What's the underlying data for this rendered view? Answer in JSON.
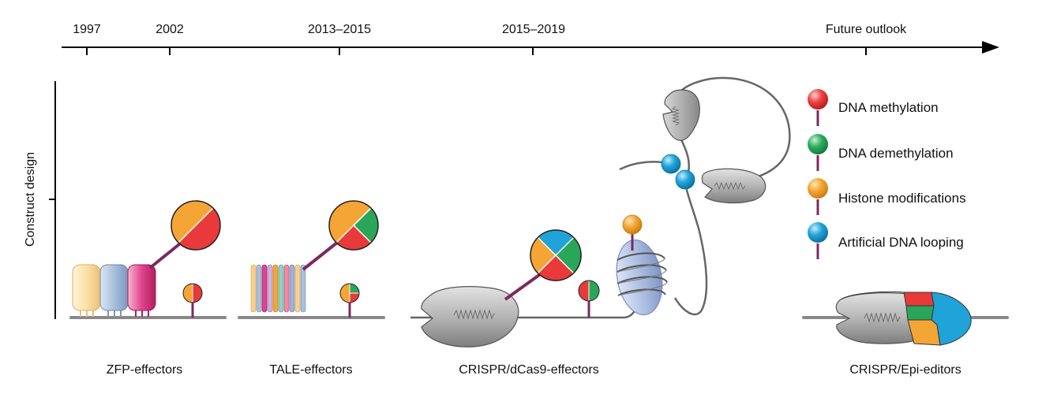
{
  "timeline": {
    "years": [
      "1997",
      "2002",
      "2013–2015",
      "2015–2019",
      "Future outlook"
    ]
  },
  "axis": {
    "ylabel": "Construct design"
  },
  "legend": {
    "items": [
      {
        "label": "DNA methylation",
        "color": "#e83a3a"
      },
      {
        "label": "DNA demethylation",
        "color": "#2aa65a"
      },
      {
        "label": "Histone modifications",
        "color": "#f4a535"
      },
      {
        "label": "Artificial DNA looping",
        "color": "#1fa3d8"
      }
    ]
  },
  "tools": {
    "labels": [
      "ZFP-effectors",
      "TALE-effectors",
      "CRISPR/dCas9-effectors",
      "CRISPR/Epi-editors"
    ]
  },
  "colors": {
    "methylation": "#e83a3a",
    "demethylation": "#2aa65a",
    "histone": "#f4a535",
    "looping": "#1fa3d8",
    "protein_gray": "#b8b8b8",
    "linker": "#7a2b60",
    "dna": "#777777"
  }
}
